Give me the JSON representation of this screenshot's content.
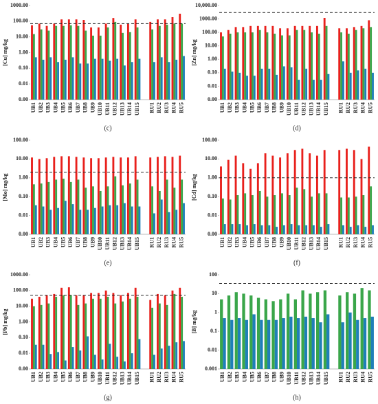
{
  "chart_data": [
    {
      "type": "bar",
      "panel_label": "(c)",
      "ylabel": "[Cu] mg/kg",
      "log_scale": true,
      "grid": false,
      "categories": [
        "UB1",
        "UB2",
        "UB3",
        "UB4",
        "UB5",
        "UB6",
        "UB7",
        "UB8",
        "UB9",
        "UB10",
        "UB11",
        "UB12",
        "UB13",
        "UB14",
        "UB15",
        null,
        "RU1",
        "RU2",
        "RU3",
        "RU4",
        "RU5"
      ],
      "ylim": [
        0.001,
        1000
      ],
      "yticks": [
        {
          "value": 0.001,
          "label": "0.00"
        },
        0.01,
        {
          "value": 0.1,
          "label": "0.10"
        },
        {
          "value": 1,
          "label": "1.00"
        },
        {
          "value": 10,
          "label": "10.00"
        },
        {
          "value": 100,
          "label": "100.00"
        },
        {
          "value": 1000,
          "label": "1000.00"
        }
      ],
      "threshold": 70,
      "series": [
        {
          "color": "#e8201c",
          "values": [
            55,
            70,
            50,
            70,
            130,
            130,
            130,
            120,
            40,
            40,
            70,
            160,
            60,
            70,
            130,
            null,
            90,
            130,
            130,
            180,
            300
          ]
        },
        {
          "color": "#3aa64a",
          "values": [
            15,
            30,
            25,
            50,
            50,
            55,
            50,
            25,
            12,
            12,
            40,
            90,
            18,
            20,
            40,
            null,
            30,
            50,
            60,
            70,
            70
          ]
        },
        {
          "color": "#1f7fb8",
          "values": [
            0.5,
            0.35,
            0.5,
            0.25,
            0.35,
            0.5,
            0.2,
            0.2,
            0.4,
            0.4,
            0.3,
            0.4,
            0.15,
            0.25,
            0.4,
            null,
            0.25,
            0.5,
            0.25,
            0.35,
            0.6
          ]
        }
      ]
    },
    {
      "type": "bar",
      "panel_label": "(d)",
      "ylabel": "[Zn] mg/kg",
      "log_scale": true,
      "grid": false,
      "categories": [
        "UB1",
        "UB2",
        "UB3",
        "UB4",
        "UB5",
        "UB6",
        "UB7",
        "UB8",
        "UB9",
        "UB10",
        "UB11",
        "UB12",
        "UB13",
        "UB14",
        "UB15",
        null,
        "RU1",
        "RU2",
        "RU3",
        "RU4",
        "RU5"
      ],
      "ylim": [
        0.001,
        10000
      ],
      "yticks": [
        {
          "value": 0.001,
          "label": "0.00"
        },
        0.01,
        {
          "value": 0.1,
          "label": "0.10"
        },
        {
          "value": 1,
          "label": "1.00"
        },
        {
          "value": 10,
          "label": "10.00"
        },
        {
          "value": 100,
          "label": "100.00"
        },
        {
          "value": 1000,
          "label": "1000.00"
        },
        {
          "value": 10000,
          "label": "10,000.00"
        }
      ],
      "threshold": 3000,
      "series": [
        {
          "color": "#e8201c",
          "values": [
            100,
            150,
            250,
            250,
            300,
            300,
            300,
            300,
            200,
            200,
            300,
            300,
            300,
            300,
            1200,
            null,
            200,
            200,
            250,
            300,
            800
          ]
        },
        {
          "color": "#3aa64a",
          "values": [
            50,
            80,
            100,
            100,
            100,
            150,
            100,
            80,
            60,
            60,
            150,
            150,
            100,
            80,
            300,
            null,
            100,
            80,
            150,
            200,
            250
          ]
        },
        {
          "color": "#1f7fb8",
          "values": [
            0.2,
            0.12,
            0.1,
            0.06,
            0.06,
            0.2,
            0.2,
            0.07,
            0.3,
            0.25,
            0.03,
            0.2,
            0.03,
            0.03,
            0.08,
            null,
            0.7,
            0.1,
            0.15,
            0.2,
            0.1
          ]
        }
      ]
    },
    {
      "type": "bar",
      "panel_label": "(e)",
      "ylabel": "[Mo] mg/kg",
      "log_scale": true,
      "grid": false,
      "categories": [
        "UB1",
        "UB2",
        "UB3",
        "UB4",
        "UB5",
        "UB6",
        "UB7",
        "UB8",
        "UB9",
        "UB10",
        "UB11",
        "UB12",
        "UB13",
        "UB14",
        "UB15",
        null,
        "RU1",
        "RU2",
        "RU3",
        "RU4",
        "RU5"
      ],
      "ylim": [
        0.001,
        100
      ],
      "yticks": [
        {
          "value": 0.001,
          "label": "0.00"
        },
        0.01,
        {
          "value": 0.1,
          "label": "0.10"
        },
        {
          "value": 1,
          "label": "1.00"
        },
        {
          "value": 10,
          "label": "10.00"
        },
        {
          "value": 100,
          "label": "100.00"
        }
      ],
      "threshold": 2,
      "series": [
        {
          "color": "#e8201c",
          "values": [
            12,
            10,
            11,
            13,
            14,
            14,
            13,
            12,
            11,
            11,
            12,
            13,
            12,
            12,
            14,
            null,
            12,
            13,
            14,
            13,
            15
          ]
        },
        {
          "color": "#3aa64a",
          "values": [
            0.45,
            0.5,
            0.6,
            0.8,
            0.9,
            0.6,
            0.8,
            0.3,
            0.35,
            0.2,
            0.35,
            1.2,
            0.4,
            0.5,
            0.8,
            null,
            0.35,
            0.2,
            0.8,
            0.3,
            0.8
          ]
        },
        {
          "color": "#1f7fb8",
          "values": [
            0.035,
            0.03,
            0.02,
            0.025,
            0.06,
            0.04,
            0.02,
            0.02,
            0.025,
            0.03,
            0.035,
            0.035,
            0.045,
            0.03,
            0.03,
            null,
            0.013,
            0.07,
            0.015,
            0.02,
            0.045
          ]
        }
      ]
    },
    {
      "type": "bar",
      "panel_label": "(f)",
      "ylabel": "[Cd] mg/kg",
      "log_scale": true,
      "grid": false,
      "categories": [
        "UB1",
        "UB2",
        "UB3",
        "UB4",
        "UB5",
        "UB6",
        "UB7",
        "UB8",
        "UB9",
        "UB10",
        "UB11",
        "UB12",
        "UB13",
        "UB14",
        "UB15",
        null,
        "RU1",
        "RU2",
        "RU3",
        "RU4",
        "RU5"
      ],
      "ylim": [
        0.001,
        100
      ],
      "yticks": [
        {
          "value": 0.001,
          "label": "0.00"
        },
        0.01,
        {
          "value": 0.1,
          "label": "0.10"
        },
        {
          "value": 1,
          "label": "1.00"
        },
        {
          "value": 10,
          "label": "10.00"
        },
        {
          "value": 100,
          "label": "100.00"
        }
      ],
      "threshold": 1,
      "series": [
        {
          "color": "#e8201c",
          "values": [
            4,
            9,
            15,
            6,
            3,
            6,
            20,
            15,
            12,
            20,
            30,
            35,
            20,
            15,
            30,
            null,
            30,
            35,
            30,
            10,
            45
          ]
        },
        {
          "color": "#3aa64a",
          "values": [
            0.08,
            0.07,
            0.12,
            0.15,
            0.12,
            0.2,
            0.1,
            0.12,
            0.15,
            0.12,
            0.3,
            0.25,
            0.1,
            0.15,
            0.15,
            null,
            0.09,
            0.09,
            0.1,
            0.12,
            0.35
          ]
        },
        {
          "color": "#1f7fb8",
          "values": [
            0.0035,
            0.0035,
            0.0035,
            0.003,
            0.0035,
            0.003,
            0.003,
            0.0025,
            0.003,
            0.0035,
            0.003,
            0.003,
            0.003,
            0.0025,
            0.0035,
            null,
            0.003,
            0.0025,
            0.003,
            0.0025,
            0.003
          ]
        }
      ]
    },
    {
      "type": "bar",
      "panel_label": "(g)",
      "ylabel": "[Pb] mg/kg",
      "log_scale": true,
      "grid": false,
      "categories": [
        "UB1",
        "UB2",
        "UB3",
        "UB4",
        "UB5",
        "UB6",
        "UB7",
        "UB8",
        "UB9",
        "UB10",
        "UB11",
        "UB12",
        "UB13",
        "UB14",
        "UB15",
        null,
        "RU1",
        "RU2",
        "RU3",
        "RU4",
        "RU5"
      ],
      "ylim": [
        0.001,
        1000
      ],
      "yticks": [
        {
          "value": 0.001,
          "label": "0.00"
        },
        0.01,
        {
          "value": 0.1,
          "label": "0.10"
        },
        {
          "value": 1,
          "label": "1.00"
        },
        {
          "value": 10,
          "label": "10.00"
        },
        {
          "value": 100,
          "label": "100.00"
        },
        {
          "value": 1000,
          "label": "1000.00"
        }
      ],
      "threshold": 50,
      "series": [
        {
          "color": "#e8201c",
          "values": [
            30,
            40,
            50,
            60,
            150,
            160,
            50,
            50,
            70,
            70,
            100,
            70,
            50,
            70,
            150,
            null,
            25,
            60,
            50,
            100,
            150
          ]
        },
        {
          "color": "#3aa64a",
          "values": [
            10,
            12,
            15,
            40,
            50,
            50,
            12,
            15,
            30,
            30,
            40,
            15,
            20,
            30,
            40,
            null,
            8,
            15,
            12,
            60,
            40
          ]
        },
        {
          "color": "#1f7fb8",
          "values": [
            0.035,
            0.035,
            0.009,
            0.012,
            0.0035,
            0.025,
            0.015,
            0.12,
            0.008,
            0.004,
            0.04,
            0.006,
            0.003,
            0.01,
            0.08,
            null,
            0.008,
            0.02,
            0.03,
            0.05,
            0.06
          ]
        }
      ]
    },
    {
      "type": "bar",
      "panel_label": "(h)",
      "ylabel": "[B] mg/kg",
      "log_scale": true,
      "grid": false,
      "categories": [
        "UB1",
        "UB2",
        "UB3",
        "UB4",
        "UB5",
        "UB6",
        "UB7",
        "UB8",
        "UB9",
        "UB10",
        "UB11",
        "UB12",
        "UB13",
        "UB14",
        "UB15",
        null,
        "RU1",
        "RU2",
        "RU3",
        "RU4",
        "RU5"
      ],
      "ylim": [
        0.001,
        100
      ],
      "yticks": [
        0.001,
        0.01,
        0.1,
        1,
        10,
        100
      ],
      "threshold": 35,
      "series": [
        {
          "color": "#3aa64a",
          "values": [
            5,
            8,
            12,
            10,
            8,
            6,
            5,
            4,
            5,
            10,
            5,
            15,
            10,
            12,
            15,
            null,
            8,
            12,
            10,
            20,
            15
          ]
        },
        {
          "color": "#1f7fb8",
          "values": [
            0.5,
            0.4,
            0.5,
            0.4,
            0.8,
            0.4,
            0.4,
            0.4,
            0.5,
            0.6,
            0.5,
            0.6,
            0.5,
            0.3,
            0.8,
            null,
            0.3,
            1,
            0.4,
            0.5,
            0.6
          ]
        }
      ]
    }
  ]
}
